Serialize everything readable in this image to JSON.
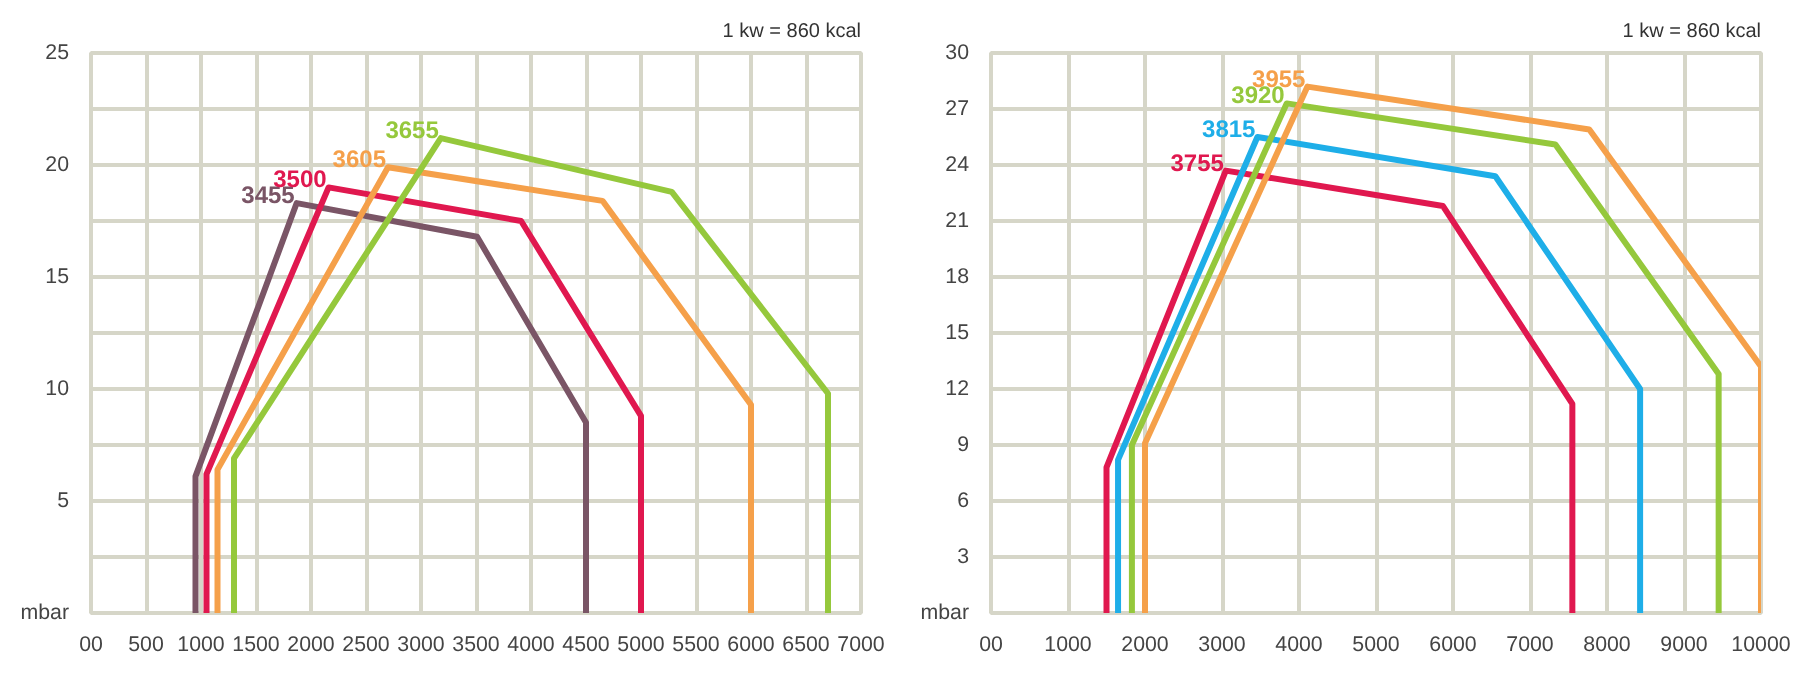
{
  "chart_data": [
    {
      "type": "line",
      "annotations": [
        "1 kw = 860 kcal"
      ],
      "xlim": [
        0,
        7000
      ],
      "ylim": [
        0,
        25
      ],
      "xticks": [
        {
          "value": 0,
          "label": "00"
        },
        500,
        1000,
        1500,
        2000,
        2500,
        3000,
        3500,
        4000,
        4500,
        5000,
        5500,
        6000,
        6500,
        7000
      ],
      "yticks": [
        {
          "value": 0,
          "label": "mbar"
        },
        {
          "value": 2.5,
          "label": null
        },
        5,
        {
          "value": 7.5,
          "label": null
        },
        10,
        {
          "value": 12.5,
          "label": null
        },
        15,
        {
          "value": 17.5,
          "label": null
        },
        20,
        {
          "value": 22.5,
          "label": null
        },
        25
      ],
      "grid": true,
      "marker": "none",
      "line_style": "solid",
      "series": [
        {
          "name": "3455",
          "color": "#7a5566",
          "x": [
            950,
            950,
            1870,
            3510,
            4500,
            4500
          ],
          "values": [
            0,
            6.1,
            18.3,
            16.8,
            8.5,
            0
          ]
        },
        {
          "name": "3500",
          "color": "#e0184f",
          "x": [
            1050,
            1050,
            2160,
            3910,
            5000,
            5000
          ],
          "values": [
            0,
            6.2,
            19.0,
            17.5,
            8.8,
            0
          ]
        },
        {
          "name": "3605",
          "color": "#f5a04a",
          "x": [
            1150,
            1150,
            2700,
            4650,
            6000,
            6000
          ],
          "values": [
            0,
            6.4,
            19.9,
            18.4,
            9.3,
            0
          ]
        },
        {
          "name": "3655",
          "color": "#95c83c",
          "x": [
            1300,
            1300,
            3180,
            5280,
            6700,
            6700
          ],
          "values": [
            0,
            6.9,
            21.2,
            18.8,
            9.8,
            0
          ]
        }
      ]
    },
    {
      "type": "line",
      "annotations": [
        "1 kw = 860 kcal"
      ],
      "xlim": [
        0,
        10000
      ],
      "ylim": [
        0,
        30
      ],
      "xticks": [
        {
          "value": 0,
          "label": "00"
        },
        1000,
        2000,
        3000,
        4000,
        5000,
        6000,
        7000,
        8000,
        9000,
        10000
      ],
      "yticks": [
        {
          "value": 0,
          "label": "mbar"
        },
        3,
        6,
        9,
        12,
        15,
        18,
        21,
        24,
        27,
        30
      ],
      "grid": true,
      "marker": "none",
      "line_style": "solid",
      "series": [
        {
          "name": "3755",
          "color": "#e0184f",
          "x": [
            1500,
            1500,
            3050,
            5870,
            7550,
            7550
          ],
          "values": [
            0,
            7.8,
            23.7,
            21.8,
            11.2,
            0
          ]
        },
        {
          "name": "3815",
          "color": "#1eaee8",
          "x": [
            1650,
            1650,
            3460,
            6550,
            8430,
            8430
          ],
          "values": [
            0,
            8.2,
            25.5,
            23.4,
            12.0,
            0
          ]
        },
        {
          "name": "3920",
          "color": "#95c83c",
          "x": [
            1830,
            1830,
            3840,
            7330,
            9450,
            9450
          ],
          "values": [
            0,
            9.0,
            27.3,
            25.1,
            12.8,
            0
          ]
        },
        {
          "name": "3955",
          "color": "#f5a04a",
          "x": [
            2000,
            2000,
            4110,
            7770,
            10000,
            10000
          ],
          "values": [
            0,
            9.1,
            28.2,
            25.9,
            13.2,
            0
          ]
        }
      ]
    }
  ]
}
